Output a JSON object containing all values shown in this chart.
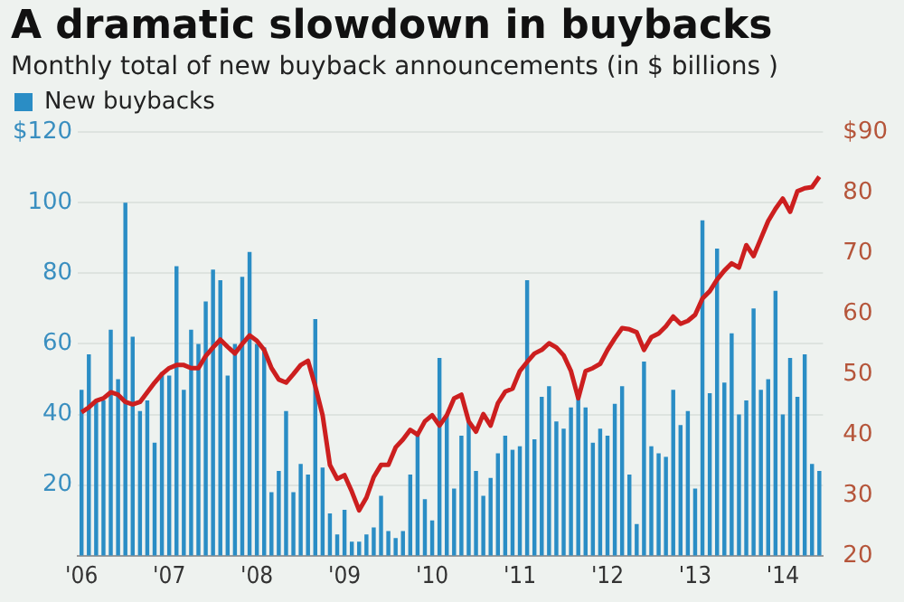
{
  "chart_data": {
    "type": "bar",
    "title": "A dramatic slowdown in buybacks",
    "subtitle": "Monthly total of new buyback announcements (in $ billions )",
    "categories": [
      "'06",
      null,
      null,
      null,
      null,
      null,
      null,
      null,
      null,
      null,
      null,
      null,
      "'07",
      null,
      null,
      null,
      null,
      null,
      null,
      null,
      null,
      null,
      null,
      null,
      "'08",
      null,
      null,
      null,
      null,
      null,
      null,
      null,
      null,
      null,
      null,
      null,
      "'09",
      null,
      null,
      null,
      null,
      null,
      null,
      null,
      null,
      null,
      null,
      null,
      "'10",
      null,
      null,
      null,
      null,
      null,
      null,
      null,
      null,
      null,
      null,
      null,
      "'11",
      null,
      null,
      null,
      null,
      null,
      null,
      null,
      null,
      null,
      null,
      null,
      "'12",
      null,
      null,
      null,
      null,
      null,
      null,
      null,
      null,
      null,
      null,
      null,
      "'13",
      null,
      null,
      null,
      null,
      null,
      null,
      null,
      null,
      null,
      null,
      null,
      "'14",
      null,
      null,
      null,
      null,
      null
    ],
    "series": [
      {
        "name": "New buybacks",
        "color": "#2a8dc5",
        "values": [
          47,
          57,
          44,
          44,
          64,
          50,
          100,
          62,
          41,
          44,
          32,
          52,
          51,
          82,
          47,
          64,
          60,
          72,
          81,
          78,
          51,
          60,
          79,
          86,
          60,
          59,
          18,
          24,
          41,
          18,
          26,
          23,
          67,
          25,
          12,
          6,
          13,
          4,
          4,
          6,
          8,
          17,
          7,
          5,
          7,
          23,
          35,
          16,
          10,
          56,
          40,
          19,
          34,
          38,
          24,
          17,
          22,
          29,
          34,
          30,
          31,
          78,
          33,
          45,
          48,
          38,
          36,
          42,
          45,
          42,
          32,
          36,
          34,
          43,
          48,
          23,
          9,
          55,
          31,
          29,
          28,
          47,
          37,
          41,
          19,
          95,
          46,
          87,
          49,
          63,
          40,
          44,
          70,
          47,
          50,
          75,
          40,
          56,
          45,
          57,
          26,
          24
        ]
      },
      {
        "type": "line",
        "axis": "y2",
        "color": "#cc1f1f",
        "values": [
          43.7,
          44.5,
          45.6,
          46,
          47,
          46.6,
          45.4,
          45,
          45.4,
          47,
          48.6,
          50,
          51,
          51.5,
          51.5,
          51,
          51,
          53,
          54.4,
          55.7,
          54.5,
          53.4,
          55,
          56.4,
          55.5,
          54,
          51,
          49.1,
          48.6,
          50,
          51.5,
          52.2,
          48,
          43.2,
          35,
          32.7,
          33.3,
          30.6,
          27.5,
          29.6,
          33,
          35,
          35,
          37.9,
          39.2,
          40.8,
          40,
          42.2,
          43.2,
          41.5,
          43.2,
          46,
          46.6,
          42.2,
          40.5,
          43.4,
          41.5,
          45.2,
          47.1,
          47.6,
          50.5,
          52,
          53.4,
          54,
          55.1,
          54.4,
          53.1,
          50.5,
          46,
          50.5,
          51,
          51.7,
          54,
          55.9,
          57.6,
          57.4,
          56.9,
          54,
          56.1,
          56.7,
          57.9,
          59.5,
          58.3,
          58.8,
          59.8,
          62.5,
          63.7,
          65.6,
          67.1,
          68.3,
          67.6,
          71.3,
          69.5,
          72.4,
          75.3,
          77.3,
          79,
          76.8,
          80.2,
          80.7,
          80.9,
          82.6
        ]
      }
    ],
    "ylim": [
      0,
      120
    ],
    "yticks": [
      20,
      40,
      60,
      80,
      100,
      {
        "value": 120,
        "label": "$120"
      }
    ],
    "y2lim": [
      20,
      90
    ],
    "y2ticks": [
      20,
      30,
      40,
      50,
      60,
      70,
      80,
      {
        "value": 90,
        "label": "$90"
      }
    ],
    "grid": "y",
    "legend": "top left",
    "marker": "none",
    "line_style": "solid"
  }
}
